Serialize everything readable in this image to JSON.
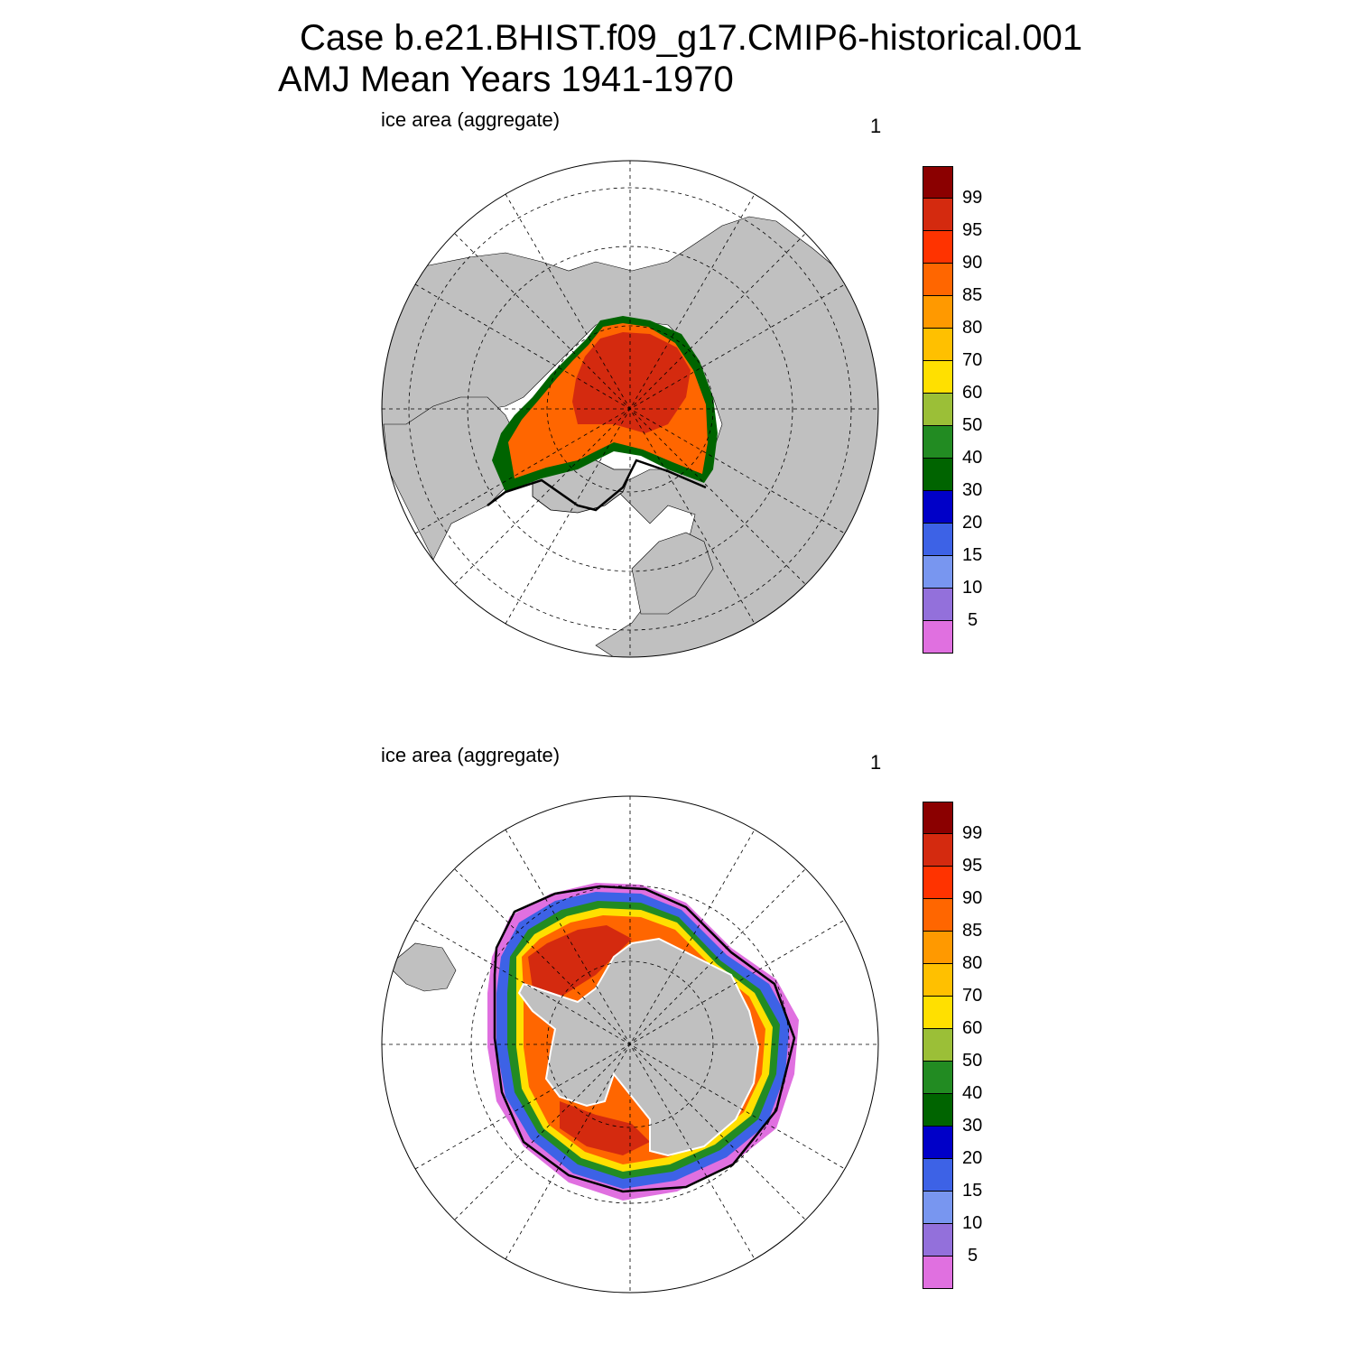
{
  "title": {
    "line1": "Case b.e21.BHIST.f09_g17.CMIP6-historical.001",
    "line2": "AMJ Mean   Years 1941-1970"
  },
  "colors": {
    "land": "#c0c0c0",
    "ocean": "#ffffff",
    "contour_line": "#000000"
  },
  "panels": [
    {
      "id": "north",
      "hemisphere": "north",
      "label": "ice area  (aggregate)",
      "number": "1"
    },
    {
      "id": "south",
      "hemisphere": "south",
      "label": "ice area  (aggregate)",
      "number": "1"
    }
  ],
  "colorbar": {
    "levels": [
      "99",
      "95",
      "90",
      "85",
      "80",
      "70",
      "60",
      "50",
      "40",
      "30",
      "20",
      "15",
      "10",
      "5"
    ],
    "colors": [
      "#8b0000",
      "#d42a0f",
      "#ff3300",
      "#ff6600",
      "#ff9900",
      "#ffc000",
      "#ffe000",
      "#9bbf37",
      "#228b22",
      "#006400",
      "#0000c8",
      "#3d62e6",
      "#7896f0",
      "#9370db",
      "#e070e0"
    ]
  }
}
